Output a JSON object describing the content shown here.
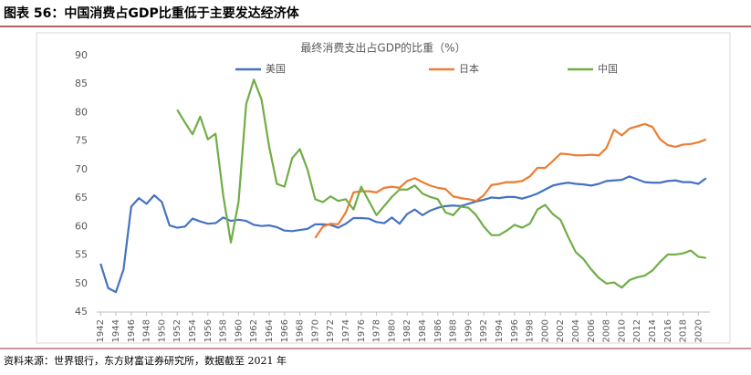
{
  "figure_title": "图表 56：中国消费占GDP比重低于主要发达经济体",
  "source": "资料来源：世界银行，东方财富证券研究所，数据截至 2021 年",
  "chart_data": {
    "type": "line",
    "title": "最终消费支出占GDP的比重（%）",
    "legend": "top",
    "grid": false,
    "x": [
      1942,
      1943,
      1944,
      1945,
      1946,
      1947,
      1948,
      1949,
      1950,
      1951,
      1952,
      1953,
      1954,
      1955,
      1956,
      1957,
      1958,
      1959,
      1960,
      1961,
      1962,
      1963,
      1964,
      1965,
      1966,
      1967,
      1968,
      1969,
      1970,
      1971,
      1972,
      1973,
      1974,
      1975,
      1976,
      1977,
      1978,
      1979,
      1980,
      1981,
      1982,
      1983,
      1984,
      1985,
      1986,
      1987,
      1988,
      1989,
      1990,
      1991,
      1992,
      1993,
      1994,
      1995,
      1996,
      1997,
      1998,
      1999,
      2000,
      2001,
      2002,
      2003,
      2004,
      2005,
      2006,
      2007,
      2008,
      2009,
      2010,
      2011,
      2012,
      2013,
      2014,
      2015,
      2016,
      2017,
      2018,
      2019,
      2020,
      2021
    ],
    "xlim": [
      1941.5,
      2021.5
    ],
    "xticks": [
      1942,
      1944,
      1946,
      1948,
      1950,
      1952,
      1954,
      1956,
      1958,
      1960,
      1962,
      1964,
      1966,
      1968,
      1970,
      1972,
      1974,
      1976,
      1978,
      1980,
      1982,
      1984,
      1986,
      1988,
      1990,
      1992,
      1994,
      1996,
      1998,
      2000,
      2002,
      2004,
      2006,
      2008,
      2010,
      2012,
      2014,
      2016,
      2018,
      2020
    ],
    "ylim": [
      45,
      90
    ],
    "yticks": [
      45,
      50,
      55,
      60,
      65,
      70,
      75,
      80,
      85,
      90
    ],
    "series": [
      {
        "name": "美国",
        "color": "#4472c4",
        "values": [
          53.5,
          49.2,
          48.5,
          52.5,
          63.5,
          65,
          64,
          65.5,
          64.3,
          60.2,
          59.8,
          60,
          61.4,
          60.9,
          60.5,
          60.6,
          61.6,
          61,
          61.2,
          61,
          60.3,
          60.1,
          60.2,
          59.9,
          59.3,
          59.2,
          59.4,
          59.6,
          60.4,
          60.4,
          60.3,
          59.8,
          60.5,
          61.5,
          61.5,
          61.4,
          60.8,
          60.6,
          61.6,
          60.5,
          62.2,
          63,
          62,
          62.8,
          63.3,
          63.6,
          63.7,
          63.6,
          64,
          64.4,
          64.7,
          65.1,
          65,
          65.2,
          65.2,
          64.9,
          65.3,
          65.8,
          66.5,
          67.2,
          67.5,
          67.7,
          67.5,
          67.4,
          67.2,
          67.5,
          68,
          68.1,
          68.2,
          68.8,
          68.3,
          67.8,
          67.7,
          67.7,
          68,
          68.1,
          67.8,
          67.8,
          67.5,
          68.5
        ]
      },
      {
        "name": "日本",
        "color": "#ed7d31",
        "values": [
          null,
          null,
          null,
          null,
          null,
          null,
          null,
          null,
          null,
          null,
          null,
          null,
          null,
          null,
          null,
          null,
          null,
          null,
          null,
          null,
          null,
          null,
          null,
          null,
          null,
          null,
          null,
          null,
          58,
          60,
          60.5,
          60.4,
          62.5,
          66,
          66.2,
          66.2,
          66,
          66.8,
          67,
          66.8,
          68,
          68.5,
          67.8,
          67.2,
          66.8,
          66.6,
          65.3,
          65,
          64.8,
          64.5,
          65.5,
          67.3,
          67.5,
          67.8,
          67.8,
          68,
          68.8,
          70.3,
          70.3,
          71.5,
          72.8,
          72.7,
          72.5,
          72.5,
          72.6,
          72.5,
          73.8,
          77,
          76,
          77.2,
          77.6,
          78,
          77.5,
          75.3,
          74.3,
          74,
          74.4,
          74.5,
          74.8,
          75.3
        ]
      },
      {
        "name": "中国",
        "color": "#70ad47",
        "values": [
          null,
          null,
          null,
          null,
          null,
          null,
          null,
          null,
          null,
          null,
          80.5,
          78.3,
          76.2,
          79.3,
          75.3,
          76.3,
          65.5,
          57.2,
          64.3,
          81.5,
          85.8,
          82.3,
          74,
          67.5,
          67,
          72,
          73.6,
          70,
          64.8,
          64.3,
          65.3,
          64.5,
          64.8,
          63,
          67,
          64.5,
          62,
          63.6,
          65.2,
          66.5,
          66.5,
          67.2,
          65.8,
          65.2,
          64.8,
          62.5,
          62,
          63.5,
          63.3,
          62,
          60,
          58.5,
          58.5,
          59.3,
          60.3,
          59.8,
          60.5,
          63,
          63.8,
          62.2,
          61.2,
          58.2,
          55.5,
          54.3,
          52.5,
          51,
          50,
          50.2,
          49.3,
          50.6,
          51.1,
          51.4,
          52.3,
          53.8,
          55.1,
          55.1,
          55.3,
          55.8,
          54.7,
          54.5
        ]
      }
    ]
  }
}
